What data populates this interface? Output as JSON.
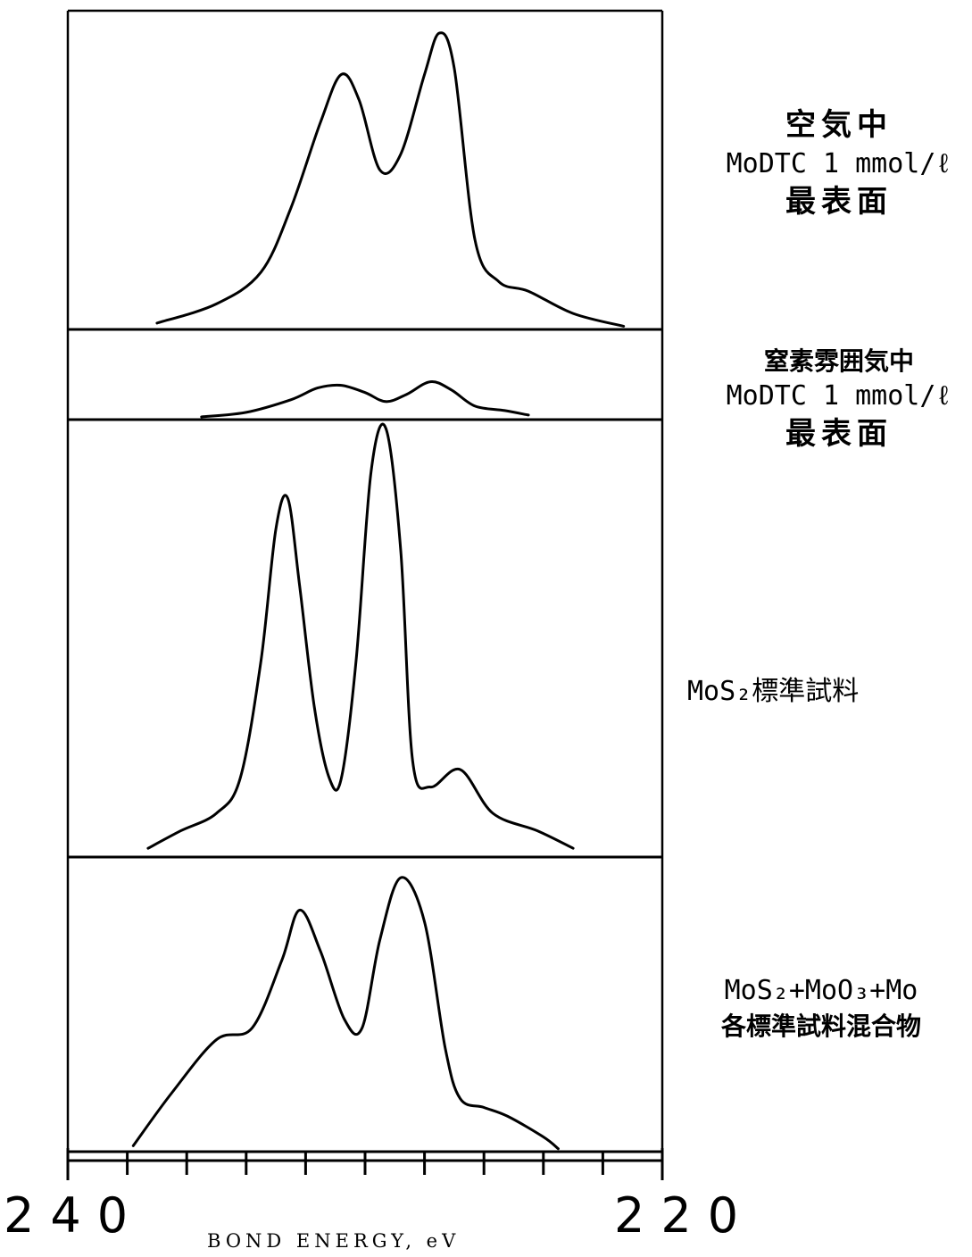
{
  "chart_data": {
    "type": "line",
    "xlabel": "BOND ENERGY, eV",
    "xlim": [
      240,
      220
    ],
    "x_tick_labels": [
      "240",
      "220"
    ],
    "panels": [
      {
        "label_lines": [
          "空気中",
          "MoDTC 1 mmol/ℓ",
          "最表面"
        ],
        "x": [
          237.0,
          235.0,
          233.5,
          232.5,
          231.5,
          230.8,
          230.2,
          229.5,
          228.8,
          228.0,
          227.5,
          227.0,
          226.3,
          225.5,
          224.5,
          223.0,
          221.3
        ],
        "y": [
          0.02,
          0.08,
          0.18,
          0.38,
          0.65,
          0.8,
          0.72,
          0.5,
          0.55,
          0.8,
          0.93,
          0.82,
          0.28,
          0.15,
          0.12,
          0.05,
          0.01
        ]
      },
      {
        "label_lines": [
          "窒素雰囲気中",
          "MoDTC 1 mmol/ℓ",
          "最表面"
        ],
        "x": [
          235.5,
          234.0,
          232.5,
          231.6,
          230.8,
          230.0,
          229.3,
          228.6,
          227.8,
          227.1,
          226.3,
          225.3,
          224.5
        ],
        "y": [
          0.03,
          0.08,
          0.22,
          0.35,
          0.38,
          0.3,
          0.2,
          0.28,
          0.42,
          0.33,
          0.15,
          0.1,
          0.05
        ]
      },
      {
        "label_lines": [
          "MoS₂標準試料"
        ],
        "x": [
          237.3,
          236.2,
          235.0,
          234.2,
          233.5,
          233.0,
          232.6,
          232.2,
          231.7,
          231.2,
          230.8,
          230.3,
          229.8,
          229.3,
          228.8,
          228.4,
          227.8,
          226.8,
          225.7,
          224.2,
          223.0
        ],
        "y": [
          0.02,
          0.06,
          0.1,
          0.18,
          0.45,
          0.75,
          0.82,
          0.62,
          0.34,
          0.18,
          0.18,
          0.45,
          0.88,
          0.98,
          0.7,
          0.22,
          0.16,
          0.2,
          0.1,
          0.06,
          0.02
        ]
      },
      {
        "label_lines": [
          "MoS₂+MoO₃+Mo",
          "各標準試料混合物"
        ],
        "x": [
          237.8,
          236.5,
          235.0,
          233.8,
          232.8,
          232.2,
          231.5,
          230.7,
          230.1,
          229.5,
          228.8,
          228.0,
          227.3,
          226.8,
          226.0,
          225.2,
          224.0,
          223.5
        ],
        "y": [
          0.02,
          0.2,
          0.38,
          0.42,
          0.65,
          0.82,
          0.68,
          0.45,
          0.42,
          0.72,
          0.93,
          0.78,
          0.35,
          0.18,
          0.15,
          0.12,
          0.05,
          0.01
        ]
      }
    ]
  },
  "colors": {
    "line": "#000000",
    "background": "#ffffff"
  }
}
